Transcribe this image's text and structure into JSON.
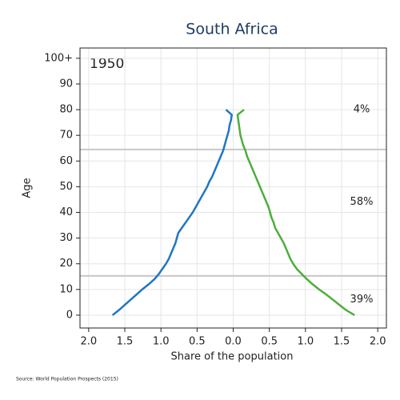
{
  "chart_data": {
    "type": "pyramid",
    "title": "South Africa",
    "xlabel": "Share of the population",
    "ylabel": "Age",
    "year_label": "1950",
    "source": "Source: World Population Prospects (2015)",
    "xlim": [
      -2.12,
      2.12
    ],
    "ylim": [
      -5,
      104
    ],
    "xticks": [
      {
        "value": -2,
        "label": "2.0"
      },
      {
        "value": -1.5,
        "label": "1.5"
      },
      {
        "value": -1,
        "label": "1.0"
      },
      {
        "value": -0.5,
        "label": "0.5"
      },
      {
        "value": 0,
        "label": "0.0"
      },
      {
        "value": 0.5,
        "label": "0.5"
      },
      {
        "value": 1,
        "label": "1.0"
      },
      {
        "value": 1.5,
        "label": "1.5"
      },
      {
        "value": 2,
        "label": "2.0"
      }
    ],
    "yticks": [
      0,
      10,
      20,
      30,
      40,
      50,
      60,
      70,
      80,
      90,
      {
        "value": 100,
        "label": "100+"
      }
    ],
    "grid": true,
    "hlines": [
      64.5,
      15.3
    ],
    "annotations": [
      {
        "text": "4%",
        "y": 80
      },
      {
        "text": "58%",
        "y": 44
      },
      {
        "text": "39%",
        "y": 6
      }
    ],
    "y": [
      0,
      2,
      4,
      6,
      8,
      10,
      12,
      14,
      16,
      18,
      20,
      22,
      24,
      26,
      28,
      30,
      32,
      34,
      36,
      38,
      40,
      42,
      44,
      46,
      48,
      50,
      52,
      54,
      56,
      58,
      60,
      62,
      64,
      66,
      68,
      70,
      72,
      74,
      76,
      78,
      80
    ],
    "series": [
      {
        "color": "#1f77c4",
        "values": [
          -1.67,
          -1.58,
          -1.5,
          -1.42,
          -1.34,
          -1.26,
          -1.17,
          -1.09,
          -1.03,
          -0.98,
          -0.93,
          -0.89,
          -0.86,
          -0.83,
          -0.8,
          -0.78,
          -0.76,
          -0.71,
          -0.66,
          -0.61,
          -0.56,
          -0.52,
          -0.48,
          -0.44,
          -0.4,
          -0.36,
          -0.33,
          -0.29,
          -0.26,
          -0.23,
          -0.2,
          -0.17,
          -0.14,
          -0.12,
          -0.1,
          -0.08,
          -0.06,
          -0.05,
          -0.03,
          -0.02,
          -0.1
        ]
      },
      {
        "color": "#4cae3c",
        "values": [
          1.68,
          1.56,
          1.47,
          1.38,
          1.29,
          1.19,
          1.1,
          1.02,
          0.95,
          0.88,
          0.83,
          0.79,
          0.76,
          0.73,
          0.7,
          0.66,
          0.62,
          0.58,
          0.56,
          0.53,
          0.51,
          0.49,
          0.46,
          0.43,
          0.4,
          0.37,
          0.34,
          0.31,
          0.28,
          0.25,
          0.22,
          0.19,
          0.17,
          0.14,
          0.12,
          0.1,
          0.09,
          0.08,
          0.07,
          0.06,
          0.15
        ]
      }
    ]
  }
}
